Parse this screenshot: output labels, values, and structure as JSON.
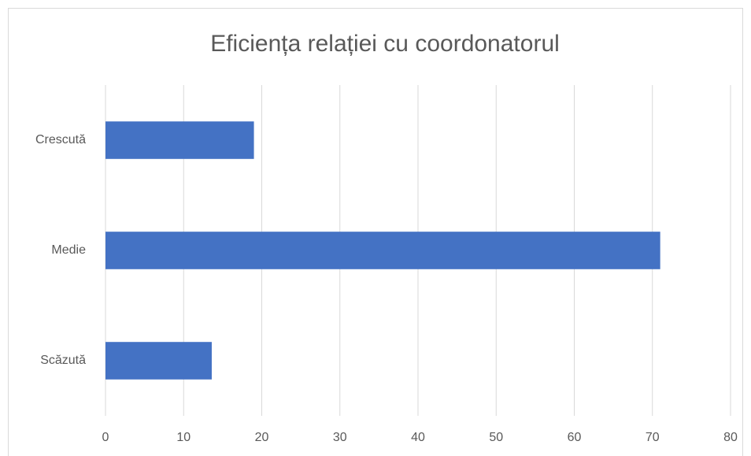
{
  "chart_data": {
    "type": "bar",
    "orientation": "horizontal",
    "title": "Eficiența relației cu coordonatorul",
    "categories": [
      "Crescută",
      "Medie",
      "Scăzută"
    ],
    "values": [
      19,
      71,
      13.6
    ],
    "color": "#4472c4",
    "xlim": [
      0,
      80
    ],
    "xticks": [
      0,
      10,
      20,
      30,
      40,
      50,
      60,
      70,
      80
    ],
    "grid": true
  }
}
